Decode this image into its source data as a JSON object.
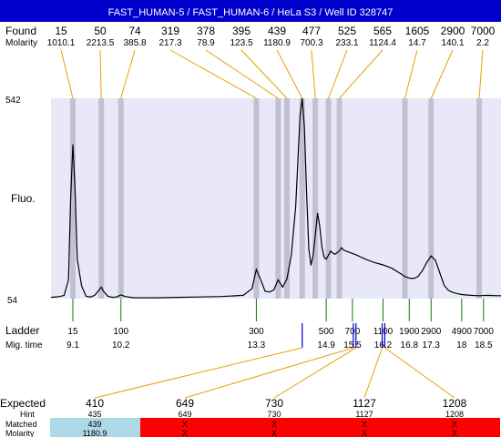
{
  "header": {
    "title": "FAST_HUMAN-5 / FAST_HUMAN-6 / HeLa S3 / Well ID 328747",
    "background": "#0000cc",
    "text_color": "#ffffff"
  },
  "labels": {
    "found": "Found",
    "molarity": "Molarity",
    "ladder": "Ladder",
    "mig_time": "Mig. time",
    "fluo": "Fluo.",
    "expected": "Expected",
    "hint": "Hint",
    "matched": "Matched",
    "molarity_bottom": "Molarity"
  },
  "colors": {
    "trace": "#000000",
    "plot_bg": "#e8e8f8",
    "band": "#b4b4c4",
    "found_line": "#e8a000",
    "ladder_tick": "#008000",
    "marker": "#0000cc",
    "matched_bg": "#add8e6",
    "unmatched_bg": "#ff0000"
  },
  "found_peaks": [
    {
      "size": "15",
      "molarity": "1010.1"
    },
    {
      "size": "50",
      "molarity": "2213.5"
    },
    {
      "size": "74",
      "molarity": "385.8"
    },
    {
      "size": "319",
      "molarity": "217.3"
    },
    {
      "size": "378",
      "molarity": "78.9"
    },
    {
      "size": "395",
      "molarity": "123.5"
    },
    {
      "size": "439",
      "molarity": "1180.9"
    },
    {
      "size": "477",
      "molarity": "700.3"
    },
    {
      "size": "525",
      "molarity": "233.1"
    },
    {
      "size": "565",
      "molarity": "1124.4"
    },
    {
      "size": "1605",
      "molarity": "14.7"
    },
    {
      "size": "2900",
      "molarity": "140.1"
    },
    {
      "size": "7000",
      "molarity": "2.2"
    }
  ],
  "ladder": [
    {
      "size": "15",
      "time": "9.1"
    },
    {
      "size": "100",
      "time": "10.2"
    },
    {
      "size": "300",
      "time": "13.3"
    },
    {
      "size": "500",
      "time": "14.9"
    },
    {
      "size": "700",
      "time": "15.5"
    },
    {
      "size": "1100",
      "time": "16.2"
    },
    {
      "size": "1900",
      "time": "16.8"
    },
    {
      "size": "2900",
      "time": "17.3"
    },
    {
      "size": "4900",
      "time": "18"
    },
    {
      "size": "7000",
      "time": "18.5"
    }
  ],
  "expected": [
    {
      "value": "410",
      "hint": "435",
      "matched": "439",
      "molarity": "1180.9",
      "is_matched": true
    },
    {
      "value": "649",
      "hint": "649",
      "matched": "X",
      "molarity": "X",
      "is_matched": false
    },
    {
      "value": "730",
      "hint": "730",
      "matched": "X",
      "molarity": "X",
      "is_matched": false
    },
    {
      "value": "1127",
      "hint": "1127",
      "matched": "X",
      "molarity": "X",
      "is_matched": false
    },
    {
      "value": "1208",
      "hint": "1208",
      "matched": "X",
      "molarity": "X",
      "is_matched": false
    }
  ],
  "chart_data": {
    "type": "line",
    "ylabel": "Fluo.",
    "ylim": [
      54,
      542
    ],
    "y_ticks": [
      "542",
      "54"
    ],
    "x_axis": "migration time",
    "xlim": [
      8.6,
      18.9
    ],
    "series": [
      {
        "x": [
          8.6,
          8.8,
          8.9,
          9.0,
          9.05,
          9.1,
          9.15,
          9.2,
          9.3,
          9.4,
          9.5,
          9.6,
          9.7,
          9.75,
          9.8,
          9.9,
          10.0,
          10.1,
          10.2,
          10.3,
          10.5,
          11.0,
          11.5,
          12.0,
          12.5,
          13.0,
          13.2,
          13.3,
          13.4,
          13.5,
          13.6,
          13.7,
          13.8,
          13.9,
          14.0,
          14.1,
          14.2,
          14.3,
          14.35,
          14.4,
          14.45,
          14.5,
          14.55,
          14.6,
          14.65,
          14.7,
          14.75,
          14.8,
          14.85,
          14.9,
          14.95,
          15.0,
          15.05,
          15.1,
          15.15,
          15.2,
          15.25,
          15.3,
          15.4,
          15.5,
          15.6,
          15.7,
          15.8,
          15.9,
          16.0,
          16.2,
          16.4,
          16.6,
          16.7,
          16.8,
          16.9,
          17.0,
          17.1,
          17.2,
          17.3,
          17.4,
          17.5,
          17.6,
          17.7,
          17.8,
          17.9,
          18.0,
          18.2,
          18.4,
          18.6,
          18.8,
          18.9
        ],
        "y": [
          57,
          59,
          62,
          100,
          300,
          430,
          320,
          150,
          85,
          60,
          58,
          62,
          75,
          82,
          72,
          60,
          57,
          58,
          63,
          59,
          56,
          56,
          57,
          58,
          59,
          62,
          78,
          125,
          100,
          72,
          70,
          75,
          100,
          82,
          102,
          160,
          278,
          500,
          542,
          470,
          310,
          175,
          135,
          160,
          210,
          263,
          230,
          180,
          155,
          150,
          160,
          170,
          165,
          162,
          166,
          170,
          178,
          172,
          168,
          164,
          160,
          155,
          150,
          146,
          142,
          136,
          128,
          115,
          108,
          104,
          103,
          108,
          122,
          142,
          158,
          147,
          116,
          86,
          74,
          69,
          66,
          64,
          62,
          61,
          62,
          61,
          61
        ]
      }
    ]
  }
}
